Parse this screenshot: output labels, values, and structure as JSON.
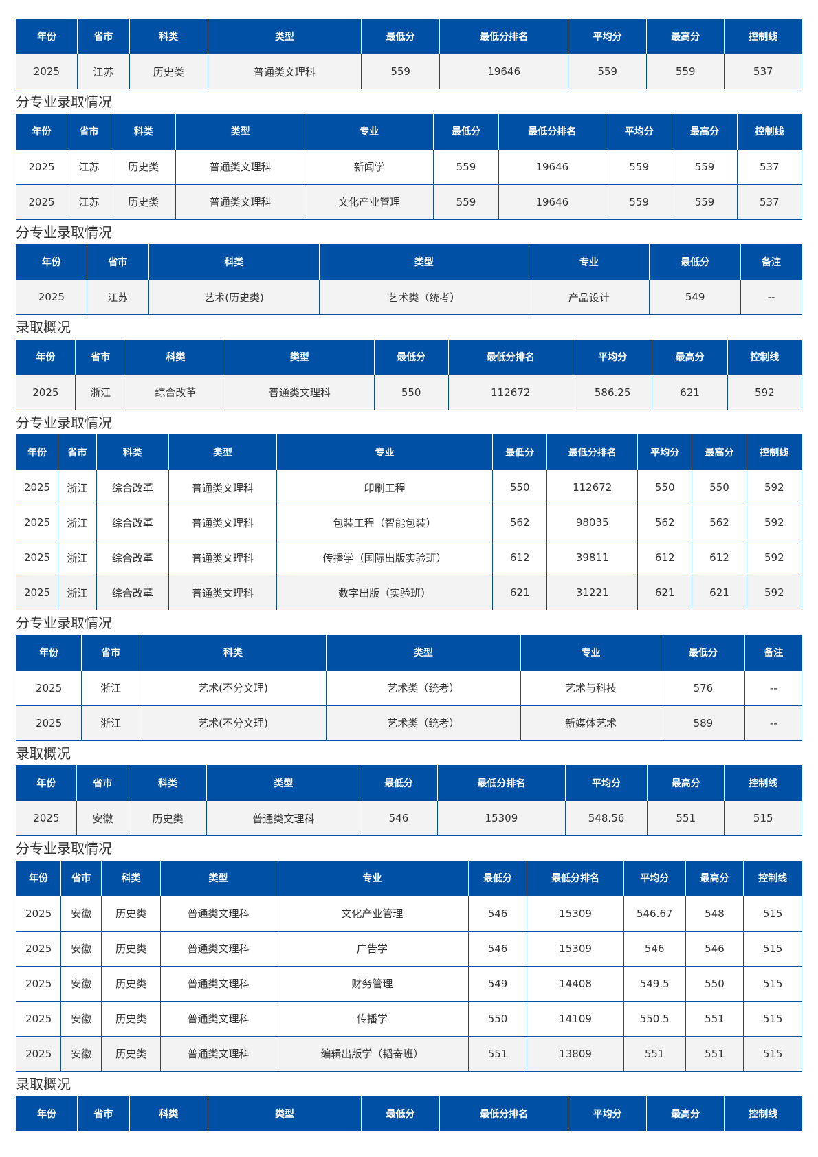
{
  "header_color": "#0050a5",
  "sections": [
    {
      "title": "",
      "headers": [
        "年份",
        "省市",
        "科类",
        "类型",
        "最低分",
        "最低分排名",
        "平均分",
        "最高分",
        "控制线"
      ],
      "rows": [
        [
          "2025",
          "江苏",
          "历史类",
          "普通类文理科",
          "559",
          "19646",
          "559",
          "559",
          "537"
        ]
      ]
    },
    {
      "title": "分专业录取情况",
      "headers": [
        "年份",
        "省市",
        "科类",
        "类型",
        "专业",
        "最低分",
        "最低分排名",
        "平均分",
        "最高分",
        "控制线"
      ],
      "rows": [
        [
          "2025",
          "江苏",
          "历史类",
          "普通类文理科",
          "新闻学",
          "559",
          "19646",
          "559",
          "559",
          "537"
        ],
        [
          "2025",
          "江苏",
          "历史类",
          "普通类文理科",
          "文化产业管理",
          "559",
          "19646",
          "559",
          "559",
          "537"
        ]
      ]
    },
    {
      "title": "分专业录取情况",
      "headers": [
        "年份",
        "省市",
        "科类",
        "类型",
        "专业",
        "最低分",
        "备注"
      ],
      "rows": [
        [
          "2025",
          "江苏",
          "艺术(历史类)",
          "艺术类（统考）",
          "产品设计",
          "549",
          "--"
        ]
      ]
    },
    {
      "title": "录取概况",
      "headers": [
        "年份",
        "省市",
        "科类",
        "类型",
        "最低分",
        "最低分排名",
        "平均分",
        "最高分",
        "控制线"
      ],
      "rows": [
        [
          "2025",
          "浙江",
          "综合改革",
          "普通类文理科",
          "550",
          "112672",
          "586.25",
          "621",
          "592"
        ]
      ]
    },
    {
      "title": "分专业录取情况",
      "headers": [
        "年份",
        "省市",
        "科类",
        "类型",
        "专业",
        "最低分",
        "最低分排名",
        "平均分",
        "最高分",
        "控制线"
      ],
      "rows": [
        [
          "2025",
          "浙江",
          "综合改革",
          "普通类文理科",
          "印刷工程",
          "550",
          "112672",
          "550",
          "550",
          "592"
        ],
        [
          "2025",
          "浙江",
          "综合改革",
          "普通类文理科",
          "包装工程（智能包装）",
          "562",
          "98035",
          "562",
          "562",
          "592"
        ],
        [
          "2025",
          "浙江",
          "综合改革",
          "普通类文理科",
          "传播学（国际出版实验班）",
          "612",
          "39811",
          "612",
          "612",
          "592"
        ],
        [
          "2025",
          "浙江",
          "综合改革",
          "普通类文理科",
          "数字出版（实验班）",
          "621",
          "31221",
          "621",
          "621",
          "592"
        ]
      ]
    },
    {
      "title": "分专业录取情况",
      "headers": [
        "年份",
        "省市",
        "科类",
        "类型",
        "专业",
        "最低分",
        "备注"
      ],
      "rows": [
        [
          "2025",
          "浙江",
          "艺术(不分文理)",
          "艺术类（统考）",
          "艺术与科技",
          "576",
          "--"
        ],
        [
          "2025",
          "浙江",
          "艺术(不分文理)",
          "艺术类（统考）",
          "新媒体艺术",
          "589",
          "--"
        ]
      ]
    },
    {
      "title": "录取概况",
      "headers": [
        "年份",
        "省市",
        "科类",
        "类型",
        "最低分",
        "最低分排名",
        "平均分",
        "最高分",
        "控制线"
      ],
      "rows": [
        [
          "2025",
          "安徽",
          "历史类",
          "普通类文理科",
          "546",
          "15309",
          "548.56",
          "551",
          "515"
        ]
      ]
    },
    {
      "title": "分专业录取情况",
      "headers": [
        "年份",
        "省市",
        "科类",
        "类型",
        "专业",
        "最低分",
        "最低分排名",
        "平均分",
        "最高分",
        "控制线"
      ],
      "rows": [
        [
          "2025",
          "安徽",
          "历史类",
          "普通类文理科",
          "文化产业管理",
          "546",
          "15309",
          "546.67",
          "548",
          "515"
        ],
        [
          "2025",
          "安徽",
          "历史类",
          "普通类文理科",
          "广告学",
          "546",
          "15309",
          "546",
          "546",
          "515"
        ],
        [
          "2025",
          "安徽",
          "历史类",
          "普通类文理科",
          "财务管理",
          "549",
          "14408",
          "549.5",
          "550",
          "515"
        ],
        [
          "2025",
          "安徽",
          "历史类",
          "普通类文理科",
          "传播学",
          "550",
          "14109",
          "550.5",
          "551",
          "515"
        ],
        [
          "2025",
          "安徽",
          "历史类",
          "普通类文理科",
          "编辑出版学（韬奋班）",
          "551",
          "13809",
          "551",
          "551",
          "515"
        ]
      ]
    },
    {
      "title": "录取概况",
      "headers": [
        "年份",
        "省市",
        "科类",
        "类型",
        "最低分",
        "最低分排名",
        "平均分",
        "最高分",
        "控制线"
      ],
      "rows": []
    }
  ]
}
